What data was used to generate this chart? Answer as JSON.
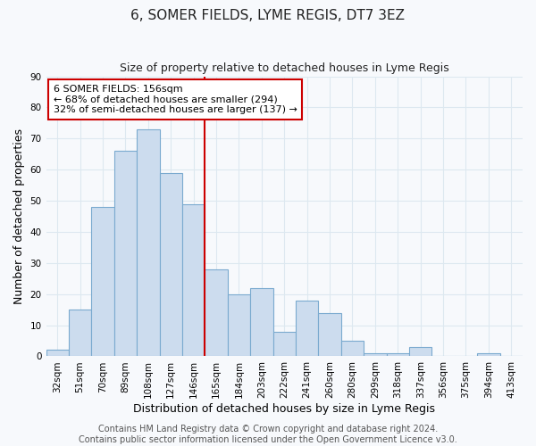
{
  "title": "6, SOMER FIELDS, LYME REGIS, DT7 3EZ",
  "subtitle": "Size of property relative to detached houses in Lyme Regis",
  "xlabel": "Distribution of detached houses by size in Lyme Regis",
  "ylabel": "Number of detached properties",
  "categories": [
    "32sqm",
    "51sqm",
    "70sqm",
    "89sqm",
    "108sqm",
    "127sqm",
    "146sqm",
    "165sqm",
    "184sqm",
    "203sqm",
    "222sqm",
    "241sqm",
    "260sqm",
    "280sqm",
    "299sqm",
    "318sqm",
    "337sqm",
    "356sqm",
    "375sqm",
    "394sqm",
    "413sqm"
  ],
  "values": [
    2,
    15,
    48,
    66,
    73,
    59,
    49,
    28,
    20,
    22,
    8,
    18,
    14,
    5,
    1,
    1,
    3,
    0,
    0,
    1,
    0
  ],
  "bar_color": "#ccdcee",
  "bar_edge_color": "#7aaacf",
  "bar_width": 1.0,
  "ylim": [
    0,
    90
  ],
  "yticks": [
    0,
    10,
    20,
    30,
    40,
    50,
    60,
    70,
    80,
    90
  ],
  "vline_color": "#cc0000",
  "annotation_box_color": "#ffffff",
  "annotation_box_edge_color": "#cc0000",
  "annotation_title": "6 SOMER FIELDS: 156sqm",
  "annotation_line1": "← 68% of detached houses are smaller (294)",
  "annotation_line2": "32% of semi-detached houses are larger (137) →",
  "footer1": "Contains HM Land Registry data © Crown copyright and database right 2024.",
  "footer2": "Contains public sector information licensed under the Open Government Licence v3.0.",
  "background_color": "#f7f9fc",
  "grid_color": "#dde8f0",
  "title_fontsize": 11,
  "subtitle_fontsize": 9,
  "axis_label_fontsize": 9,
  "tick_fontsize": 7.5,
  "footer_fontsize": 7,
  "annotation_fontsize": 8
}
